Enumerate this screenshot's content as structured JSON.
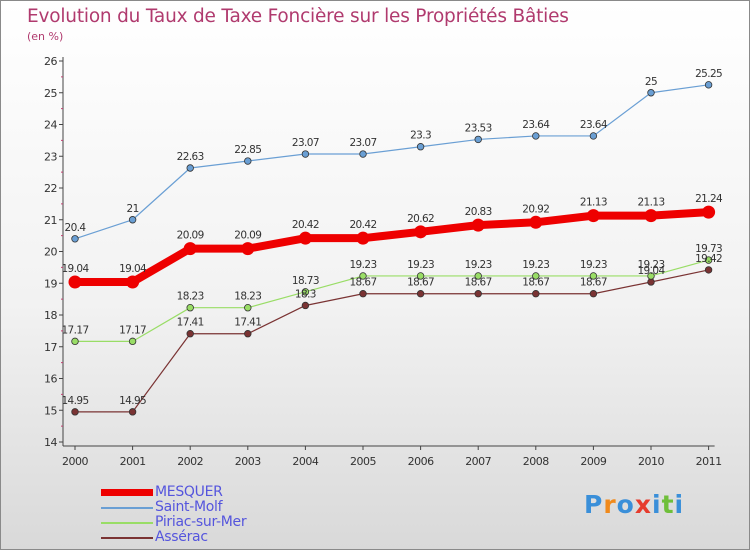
{
  "title": "Evolution du Taux de Taxe Foncière sur les Propriétés Bâties",
  "unit_label": "(en %)",
  "logo": {
    "text": "Proxiti",
    "colors": [
      "#3a8fd9",
      "#f08a1c",
      "#3a8fd9",
      "#e63c2e",
      "#3a8fd9",
      "#6fbf3a",
      "#3a8fd9"
    ]
  },
  "chart_data": {
    "type": "line",
    "x": [
      2000,
      2001,
      2002,
      2003,
      2004,
      2005,
      2006,
      2007,
      2008,
      2009,
      2010,
      2011
    ],
    "ylim": [
      14,
      26
    ],
    "yticks": [
      14,
      15,
      16,
      17,
      18,
      19,
      20,
      21,
      22,
      23,
      24,
      25,
      26
    ],
    "grid": false,
    "legend_position": "bottom-left",
    "series": [
      {
        "name": "MESQUER",
        "color": "#ee0000",
        "width": 8,
        "values": [
          19.04,
          19.04,
          20.09,
          20.09,
          20.42,
          20.42,
          20.62,
          20.83,
          20.92,
          21.13,
          21.13,
          21.24
        ],
        "labels": [
          "19.04",
          "19.04",
          "20.09",
          "20.09",
          "20.42",
          "20.42",
          "20.62",
          "20.83",
          "20.92",
          "21.13",
          "21.13",
          "21.24"
        ]
      },
      {
        "name": "Saint-Molf",
        "color": "#6a9fd4",
        "width": 1.2,
        "values": [
          20.4,
          21,
          22.63,
          22.85,
          23.07,
          23.07,
          23.3,
          23.53,
          23.64,
          23.64,
          25,
          25.25
        ],
        "labels": [
          "20.4",
          "21",
          "22.63",
          "22.85",
          "23.07",
          "23.07",
          "23.3",
          "23.53",
          "23.64",
          "23.64",
          "25",
          "25.25"
        ]
      },
      {
        "name": "Piriac-sur-Mer",
        "color": "#99dd66",
        "width": 1.2,
        "values": [
          17.17,
          17.17,
          18.23,
          18.23,
          18.73,
          19.23,
          19.23,
          19.23,
          19.23,
          19.23,
          19.23,
          19.73
        ],
        "labels": [
          "17.17",
          "17.17",
          "18.23",
          "18.23",
          "18.73",
          "19.23",
          "19.23",
          "19.23",
          "19.23",
          "19.23",
          "19.23",
          "19.73"
        ]
      },
      {
        "name": "Assérac",
        "color": "#7a3333",
        "width": 1.2,
        "values": [
          14.95,
          14.95,
          17.41,
          17.41,
          18.3,
          18.67,
          18.67,
          18.67,
          18.67,
          18.67,
          19.04,
          19.42
        ],
        "labels": [
          "14.95",
          "14.95",
          "17.41",
          "17.41",
          "18.3",
          "18.67",
          "18.67",
          "18.67",
          "18.67",
          "18.67",
          "19.04",
          "19.42"
        ]
      }
    ]
  }
}
